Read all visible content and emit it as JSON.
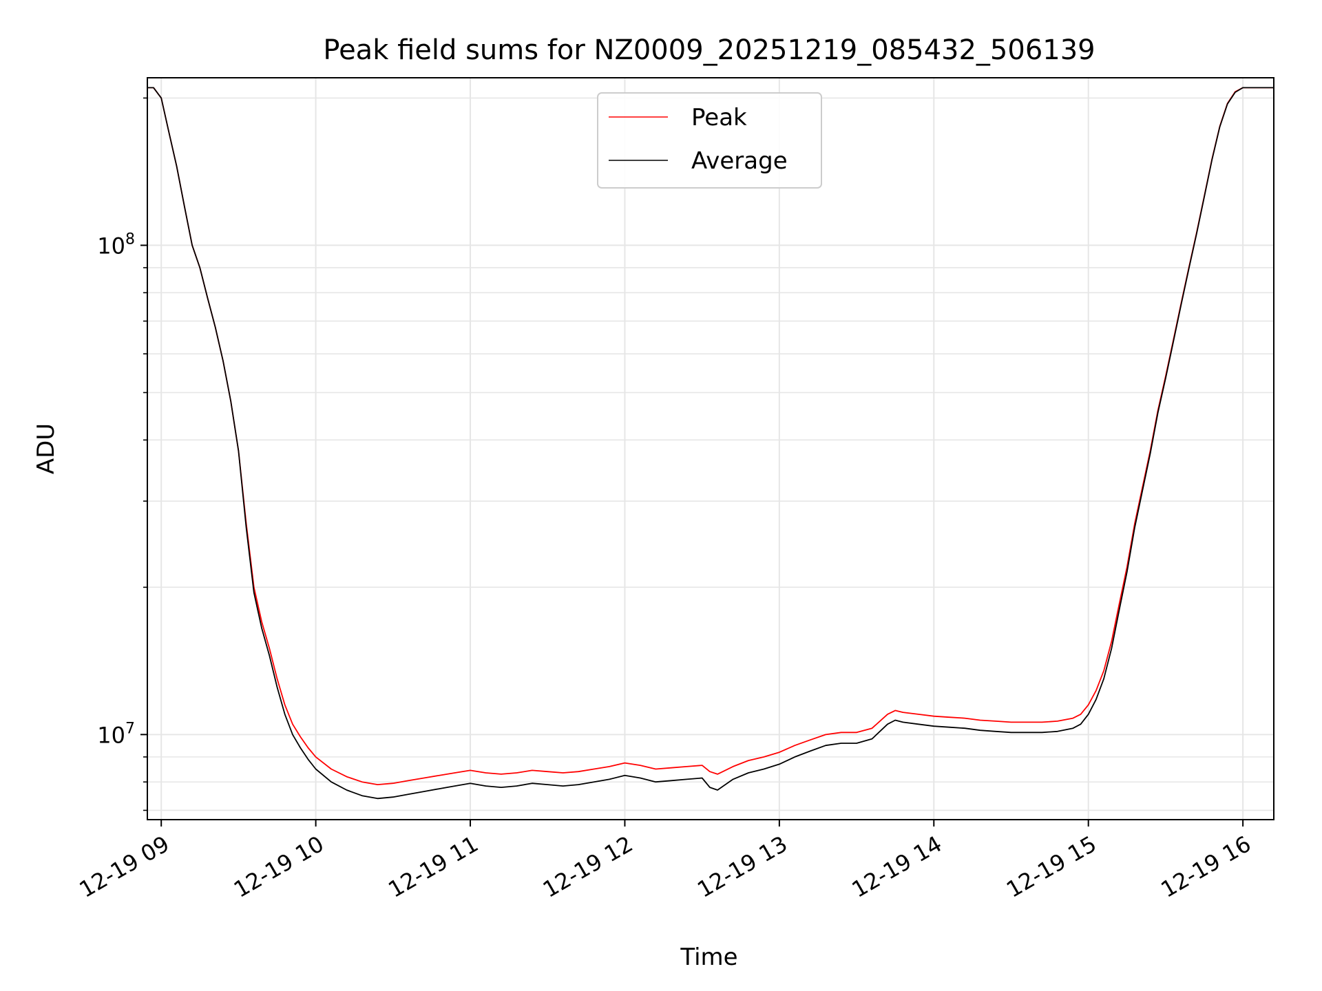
{
  "chart_data": {
    "type": "line",
    "title": "Peak field sums for NZ0009_20251219_085432_506139",
    "xlabel": "Time",
    "ylabel": "ADU",
    "yscale": "log",
    "ylim": [
      6700000,
      220000000
    ],
    "xlim": [
      8.91,
      16.2
    ],
    "x_unit": "hours",
    "x_ticks": [
      {
        "value": 9,
        "label": "12-19 09"
      },
      {
        "value": 10,
        "label": "12-19 10"
      },
      {
        "value": 11,
        "label": "12-19 11"
      },
      {
        "value": 12,
        "label": "12-19 12"
      },
      {
        "value": 13,
        "label": "12-19 13"
      },
      {
        "value": 14,
        "label": "12-19 14"
      },
      {
        "value": 15,
        "label": "12-19 15"
      },
      {
        "value": 16,
        "label": "12-19 16"
      }
    ],
    "y_ticks": [
      {
        "value": 10000000,
        "base": "10",
        "exp": "7"
      },
      {
        "value": 100000000,
        "base": "10",
        "exp": "8"
      }
    ],
    "grid": true,
    "legend": {
      "position": "top-center"
    },
    "series": [
      {
        "name": "Peak",
        "color": "#ff0000",
        "x": [
          8.91,
          8.95,
          9.0,
          9.05,
          9.1,
          9.15,
          9.2,
          9.25,
          9.3,
          9.35,
          9.4,
          9.45,
          9.5,
          9.55,
          9.6,
          9.65,
          9.7,
          9.75,
          9.8,
          9.85,
          9.9,
          9.95,
          10.0,
          10.1,
          10.2,
          10.3,
          10.4,
          10.5,
          10.6,
          10.7,
          10.8,
          10.9,
          11.0,
          11.1,
          11.2,
          11.3,
          11.4,
          11.5,
          11.6,
          11.7,
          11.8,
          11.9,
          12.0,
          12.1,
          12.2,
          12.3,
          12.4,
          12.5,
          12.55,
          12.6,
          12.7,
          12.8,
          12.9,
          13.0,
          13.1,
          13.2,
          13.3,
          13.4,
          13.5,
          13.6,
          13.7,
          13.75,
          13.8,
          13.9,
          14.0,
          14.1,
          14.2,
          14.3,
          14.4,
          14.5,
          14.6,
          14.7,
          14.8,
          14.9,
          14.95,
          15.0,
          15.05,
          15.1,
          15.15,
          15.2,
          15.25,
          15.3,
          15.35,
          15.4,
          15.45,
          15.5,
          15.55,
          15.6,
          15.65,
          15.7,
          15.75,
          15.8,
          15.85,
          15.9,
          15.95,
          16.0,
          16.2
        ],
        "y": [
          210000000,
          210000000,
          200000000,
          170000000,
          145000000,
          120000000,
          100000000,
          90000000,
          78000000,
          68000000,
          58000000,
          48000000,
          38000000,
          27000000,
          20000000,
          17000000,
          15000000,
          13000000,
          11500000,
          10500000,
          9900000,
          9400000,
          9000000,
          8500000,
          8200000,
          8000000,
          7900000,
          7950000,
          8050000,
          8150000,
          8250000,
          8350000,
          8450000,
          8350000,
          8300000,
          8350000,
          8450000,
          8400000,
          8350000,
          8400000,
          8500000,
          8600000,
          8750000,
          8650000,
          8500000,
          8550000,
          8600000,
          8650000,
          8400000,
          8300000,
          8600000,
          8850000,
          9000000,
          9200000,
          9500000,
          9750000,
          10000000,
          10100000,
          10100000,
          10300000,
          11000000,
          11200000,
          11100000,
          11000000,
          10900000,
          10850000,
          10800000,
          10700000,
          10650000,
          10600000,
          10600000,
          10600000,
          10650000,
          10800000,
          11000000,
          11500000,
          12300000,
          13500000,
          15500000,
          18500000,
          22000000,
          27000000,
          32000000,
          38000000,
          46000000,
          54000000,
          64000000,
          76000000,
          90000000,
          106000000,
          126000000,
          150000000,
          175000000,
          195000000,
          206000000,
          210000000,
          210000000
        ]
      },
      {
        "name": "Average",
        "color": "#000000",
        "x": [
          8.91,
          8.95,
          9.0,
          9.05,
          9.1,
          9.15,
          9.2,
          9.25,
          9.3,
          9.35,
          9.4,
          9.45,
          9.5,
          9.55,
          9.6,
          9.65,
          9.7,
          9.75,
          9.8,
          9.85,
          9.9,
          9.95,
          10.0,
          10.1,
          10.2,
          10.3,
          10.4,
          10.5,
          10.6,
          10.7,
          10.8,
          10.9,
          11.0,
          11.1,
          11.2,
          11.3,
          11.4,
          11.5,
          11.6,
          11.7,
          11.8,
          11.9,
          12.0,
          12.1,
          12.2,
          12.3,
          12.4,
          12.5,
          12.55,
          12.6,
          12.7,
          12.8,
          12.9,
          13.0,
          13.1,
          13.2,
          13.3,
          13.4,
          13.5,
          13.6,
          13.7,
          13.75,
          13.8,
          13.9,
          14.0,
          14.1,
          14.2,
          14.3,
          14.4,
          14.5,
          14.6,
          14.7,
          14.8,
          14.9,
          14.95,
          15.0,
          15.05,
          15.1,
          15.15,
          15.2,
          15.25,
          15.3,
          15.35,
          15.4,
          15.45,
          15.5,
          15.55,
          15.6,
          15.65,
          15.7,
          15.75,
          15.8,
          15.85,
          15.9,
          15.95,
          16.0,
          16.2
        ],
        "y": [
          210000000,
          210000000,
          200000000,
          170000000,
          145000000,
          120000000,
          100000000,
          90000000,
          78000000,
          68000000,
          58000000,
          48000000,
          38000000,
          26500000,
          19500000,
          16500000,
          14500000,
          12500000,
          11000000,
          10000000,
          9400000,
          8900000,
          8500000,
          8000000,
          7700000,
          7500000,
          7400000,
          7450000,
          7550000,
          7650000,
          7750000,
          7850000,
          7950000,
          7850000,
          7800000,
          7850000,
          7950000,
          7900000,
          7850000,
          7900000,
          8000000,
          8100000,
          8250000,
          8150000,
          8000000,
          8050000,
          8100000,
          8150000,
          7800000,
          7700000,
          8100000,
          8350000,
          8500000,
          8700000,
          9000000,
          9250000,
          9500000,
          9600000,
          9600000,
          9800000,
          10500000,
          10700000,
          10600000,
          10500000,
          10400000,
          10350000,
          10300000,
          10200000,
          10150000,
          10100000,
          10100000,
          10100000,
          10150000,
          10300000,
          10500000,
          11000000,
          11800000,
          13000000,
          15000000,
          18000000,
          21500000,
          26500000,
          31500000,
          37500000,
          45500000,
          53500000,
          63500000,
          75500000,
          89500000,
          105500000,
          125500000,
          149500000,
          174500000,
          194500000,
          205500000,
          210000000,
          210000000
        ]
      }
    ]
  }
}
